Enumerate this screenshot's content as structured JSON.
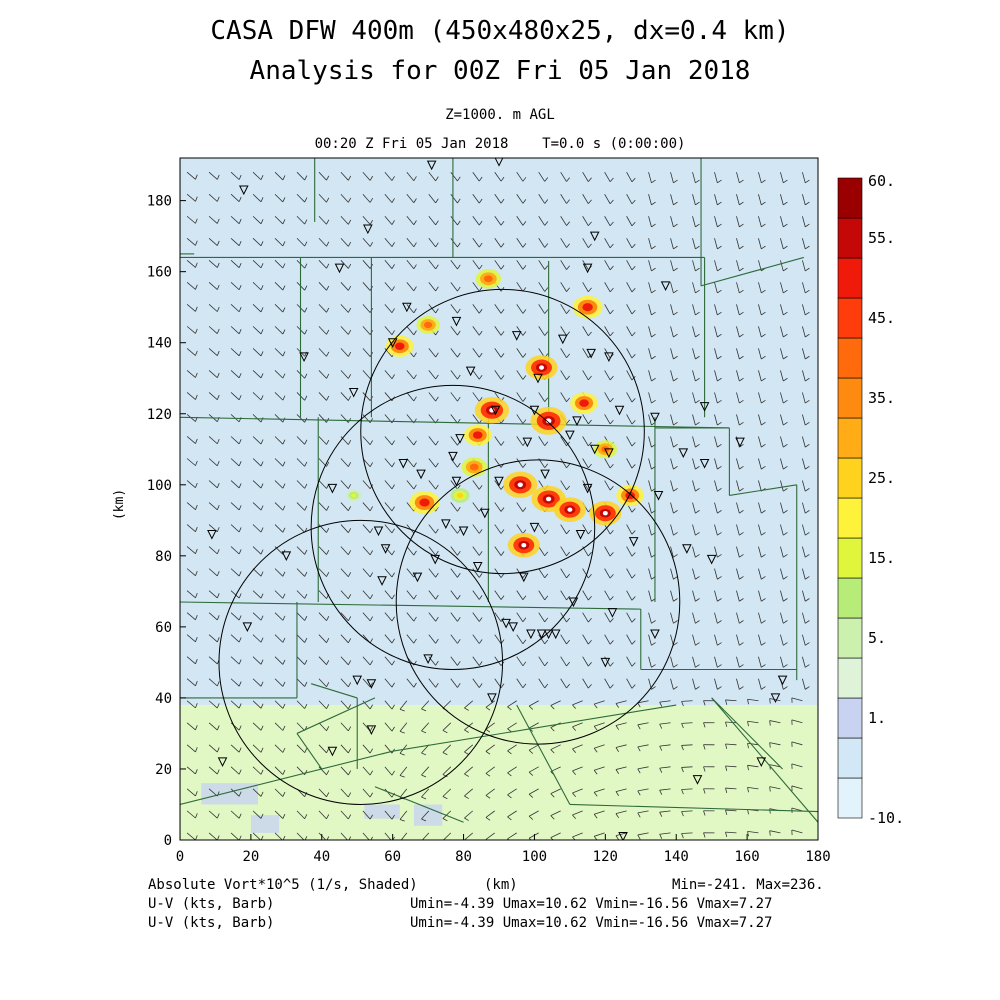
{
  "header": {
    "title_line1": "CASA DFW 400m (450x480x25, dx=0.4 km)",
    "title_line2": "Analysis for 00Z Fri 05 Jan 2018",
    "level": "Z=1000. m AGL",
    "valid_time": "00:20 Z Fri 05 Jan 2018    T=0.0 s (0:00:00)"
  },
  "footer": {
    "field_label": "Absolute Vort*10^5 (1/s, Shaded)",
    "xunit": "(km)",
    "minmax": "Min=-241. Max=236.",
    "barb1_label": "U-V (kts, Barb)",
    "barb1_stats": "Umin=-4.39 Umax=10.62 Vmin=-16.56 Vmax=7.27",
    "barb2_label": "U-V (kts, Barb)",
    "barb2_stats": "Umin=-4.39 Umax=10.62 Vmin=-16.56 Vmax=7.27"
  },
  "colors": {
    "frame": "#000000",
    "county_lines": "#2e6b3a",
    "bg_field": "#d2e6f3",
    "low_field": "#e2f8c4",
    "station_marker": "#000000"
  },
  "chart_data": {
    "type": "heatmap",
    "title": "CASA DFW 400m (450x480x25, dx=0.4 km)",
    "subtitle": "Analysis for 00Z Fri 05 Jan 2018",
    "xlabel": "(km)",
    "ylabel": "(km)",
    "xlim": [
      0,
      180
    ],
    "ylim": [
      0,
      192
    ],
    "xticks": [
      0,
      20,
      40,
      60,
      80,
      100,
      120,
      140,
      160,
      180
    ],
    "yticks": [
      0,
      20,
      40,
      60,
      80,
      100,
      120,
      140,
      160,
      180
    ],
    "colorbar": {
      "levels": [
        "-10.",
        "",
        "1.",
        "",
        "5.",
        "",
        "15.",
        "",
        "25.",
        "",
        "35.",
        "",
        "45.",
        "",
        "55.",
        "60."
      ],
      "label_texts": [
        "60.",
        "55.",
        "45.",
        "35.",
        "25.",
        "15.",
        "5.",
        "1.",
        "-10."
      ],
      "colors": [
        "#e2f3fb",
        "#d3e8f6",
        "#c7d3f0",
        "#dff3d8",
        "#ccf0ad",
        "#b7ec79",
        "#dff63d",
        "#fff23a",
        "#ffd21e",
        "#ffac16",
        "#ff8a10",
        "#ff6a0c",
        "#ff3c0c",
        "#f01a0a",
        "#c40808",
        "#9a0000"
      ]
    },
    "radar_rings": [
      {
        "cx": 91,
        "cy": 115,
        "r": 40
      },
      {
        "cx": 77,
        "cy": 88,
        "r": 40
      },
      {
        "cx": 101,
        "cy": 67,
        "r": 40
      },
      {
        "cx": 51,
        "cy": 50,
        "r": 40
      }
    ],
    "vorticity_cells": [
      {
        "x": 88,
        "y": 121,
        "v": 55
      },
      {
        "x": 104,
        "y": 118,
        "v": 60
      },
      {
        "x": 102,
        "y": 133,
        "v": 50
      },
      {
        "x": 115,
        "y": 150,
        "v": 45
      },
      {
        "x": 62,
        "y": 139,
        "v": 40
      },
      {
        "x": 70,
        "y": 145,
        "v": 30
      },
      {
        "x": 87,
        "y": 158,
        "v": 35
      },
      {
        "x": 84,
        "y": 114,
        "v": 40
      },
      {
        "x": 83,
        "y": 105,
        "v": 35
      },
      {
        "x": 69,
        "y": 95,
        "v": 45
      },
      {
        "x": 96,
        "y": 100,
        "v": 55
      },
      {
        "x": 104,
        "y": 96,
        "v": 55
      },
      {
        "x": 110,
        "y": 93,
        "v": 50
      },
      {
        "x": 120,
        "y": 92,
        "v": 50
      },
      {
        "x": 97,
        "y": 83,
        "v": 50
      },
      {
        "x": 127,
        "y": 97,
        "v": 40
      },
      {
        "x": 114,
        "y": 123,
        "v": 40
      },
      {
        "x": 120,
        "y": 110,
        "v": 30
      },
      {
        "x": 79,
        "y": 97,
        "v": 20
      },
      {
        "x": 49,
        "y": 97,
        "v": 10
      }
    ],
    "wind_barbs": "U-V (kts, Barb)"
  }
}
